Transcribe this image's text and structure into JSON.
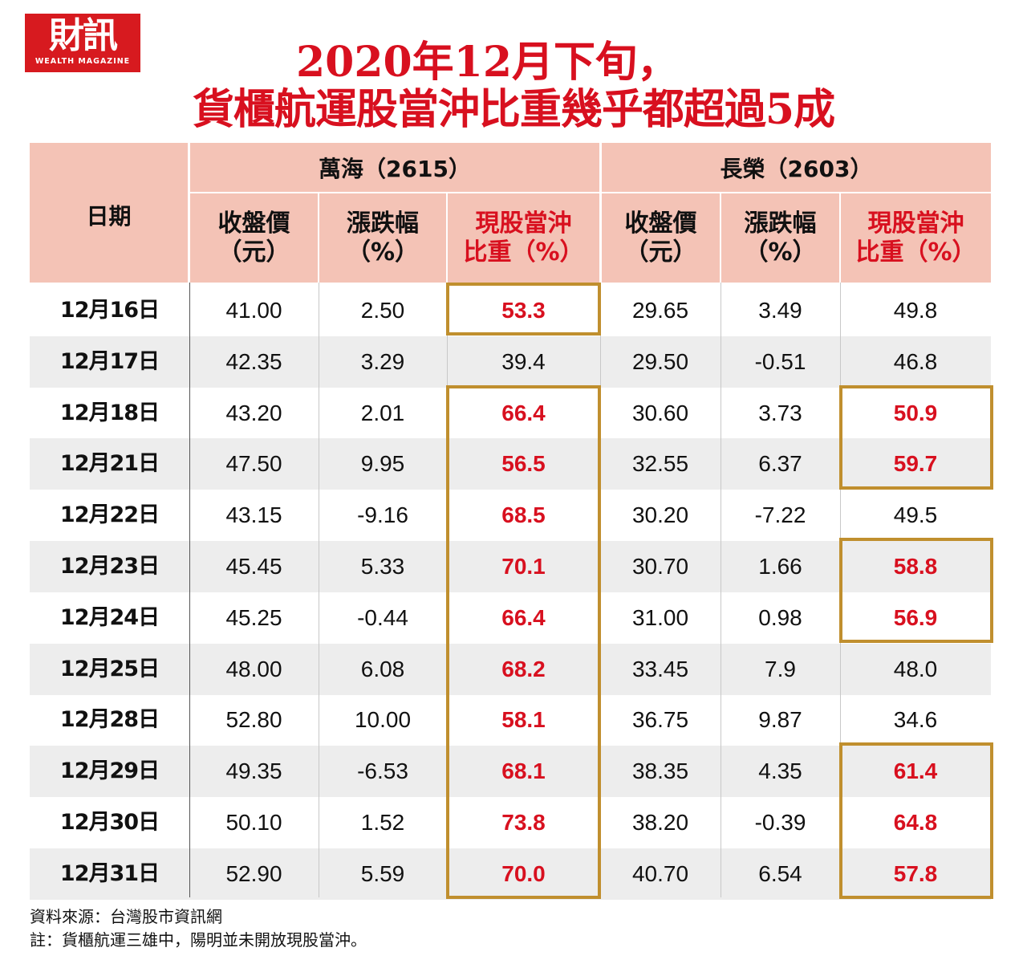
{
  "logo": {
    "zh": "財訊",
    "en": "WEALTH MAGAZINE"
  },
  "title": {
    "line1": "2020年12月下旬，",
    "line2": "貨櫃航運股當沖比重幾乎都超過5成"
  },
  "table": {
    "date_header": "日期",
    "groups": [
      {
        "label": "萬海（2615）"
      },
      {
        "label": "長榮（2603）"
      }
    ],
    "subheaders": {
      "price_l1": "收盤價",
      "price_l2": "（元）",
      "change_l1": "漲跌幅",
      "change_l2": "（%）",
      "ratio_l1": "現股當沖",
      "ratio_l2": "比重（%）"
    },
    "rows": [
      {
        "date": "12月16日",
        "wh_price": "41.00",
        "wh_chg": "2.50",
        "wh_ratio": "53.3",
        "em_price": "29.65",
        "em_chg": "3.49",
        "em_ratio": "49.8"
      },
      {
        "date": "12月17日",
        "wh_price": "42.35",
        "wh_chg": "3.29",
        "wh_ratio": "39.4",
        "em_price": "29.50",
        "em_chg": "-0.51",
        "em_ratio": "46.8"
      },
      {
        "date": "12月18日",
        "wh_price": "43.20",
        "wh_chg": "2.01",
        "wh_ratio": "66.4",
        "em_price": "30.60",
        "em_chg": "3.73",
        "em_ratio": "50.9"
      },
      {
        "date": "12月21日",
        "wh_price": "47.50",
        "wh_chg": "9.95",
        "wh_ratio": "56.5",
        "em_price": "32.55",
        "em_chg": "6.37",
        "em_ratio": "59.7"
      },
      {
        "date": "12月22日",
        "wh_price": "43.15",
        "wh_chg": "-9.16",
        "wh_ratio": "68.5",
        "em_price": "30.20",
        "em_chg": "-7.22",
        "em_ratio": "49.5"
      },
      {
        "date": "12月23日",
        "wh_price": "45.45",
        "wh_chg": "5.33",
        "wh_ratio": "70.1",
        "em_price": "30.70",
        "em_chg": "1.66",
        "em_ratio": "58.8"
      },
      {
        "date": "12月24日",
        "wh_price": "45.25",
        "wh_chg": "-0.44",
        "wh_ratio": "66.4",
        "em_price": "31.00",
        "em_chg": "0.98",
        "em_ratio": "56.9"
      },
      {
        "date": "12月25日",
        "wh_price": "48.00",
        "wh_chg": "6.08",
        "wh_ratio": "68.2",
        "em_price": "33.45",
        "em_chg": "7.9",
        "em_ratio": "48.0"
      },
      {
        "date": "12月28日",
        "wh_price": "52.80",
        "wh_chg": "10.00",
        "wh_ratio": "58.1",
        "em_price": "36.75",
        "em_chg": "9.87",
        "em_ratio": "34.6"
      },
      {
        "date": "12月29日",
        "wh_price": "49.35",
        "wh_chg": "-6.53",
        "wh_ratio": "68.1",
        "em_price": "38.35",
        "em_chg": "4.35",
        "em_ratio": "61.4"
      },
      {
        "date": "12月30日",
        "wh_price": "50.10",
        "wh_chg": "1.52",
        "wh_ratio": "73.8",
        "em_price": "38.20",
        "em_chg": "-0.39",
        "em_ratio": "64.8"
      },
      {
        "date": "12月31日",
        "wh_price": "52.90",
        "wh_chg": "5.59",
        "wh_ratio": "70.0",
        "em_price": "40.70",
        "em_chg": "6.54",
        "em_ratio": "57.8"
      }
    ]
  },
  "notes": {
    "source": "資料來源：台灣股市資訊網",
    "remark": "註：貨櫃航運三雄中，陽明並未開放現股當沖。"
  },
  "colors": {
    "title_red": "#d8101f",
    "header_bg": "#f4c3b6",
    "highlight_border": "#c08f2e",
    "alt_row_bg": "#ededed",
    "logo_bg": "#d71a1f"
  }
}
